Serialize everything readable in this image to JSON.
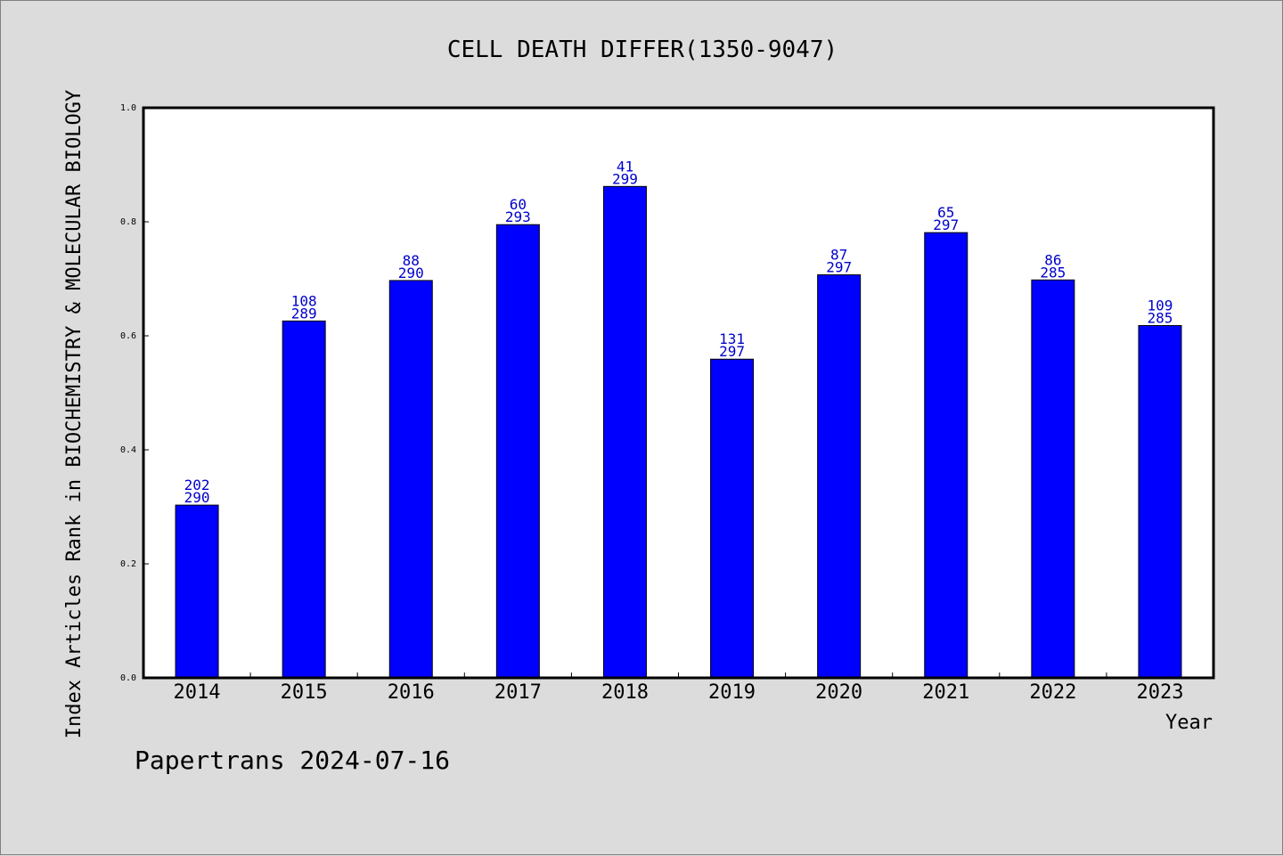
{
  "chart_data": {
    "type": "bar",
    "title": "CELL DEATH DIFFER(1350-9047)",
    "xlabel": "Year",
    "ylabel": "Index Articles Rank in BIOCHEMISTRY & MOLECULAR BIOLOGY",
    "ylim": [
      0,
      1.0
    ],
    "yticks": [
      "0.0",
      "0.2",
      "0.4",
      "0.6",
      "0.8",
      "1.0"
    ],
    "grid": false,
    "bar_color": "#0000ff",
    "label_color": "#0000cc",
    "categories": [
      "2014",
      "2015",
      "2016",
      "2017",
      "2018",
      "2019",
      "2020",
      "2021",
      "2022",
      "2023"
    ],
    "values": [
      0.303,
      0.626,
      0.697,
      0.795,
      0.862,
      0.559,
      0.707,
      0.781,
      0.698,
      0.618
    ],
    "rank": [
      "202",
      "108",
      "88",
      "60",
      "41",
      "131",
      "87",
      "65",
      "86",
      "109"
    ],
    "total": [
      "290",
      "289",
      "290",
      "293",
      "299",
      "297",
      "297",
      "297",
      "285",
      "285"
    ]
  },
  "footer": {
    "credit": "Papertrans 2024-07-16"
  }
}
